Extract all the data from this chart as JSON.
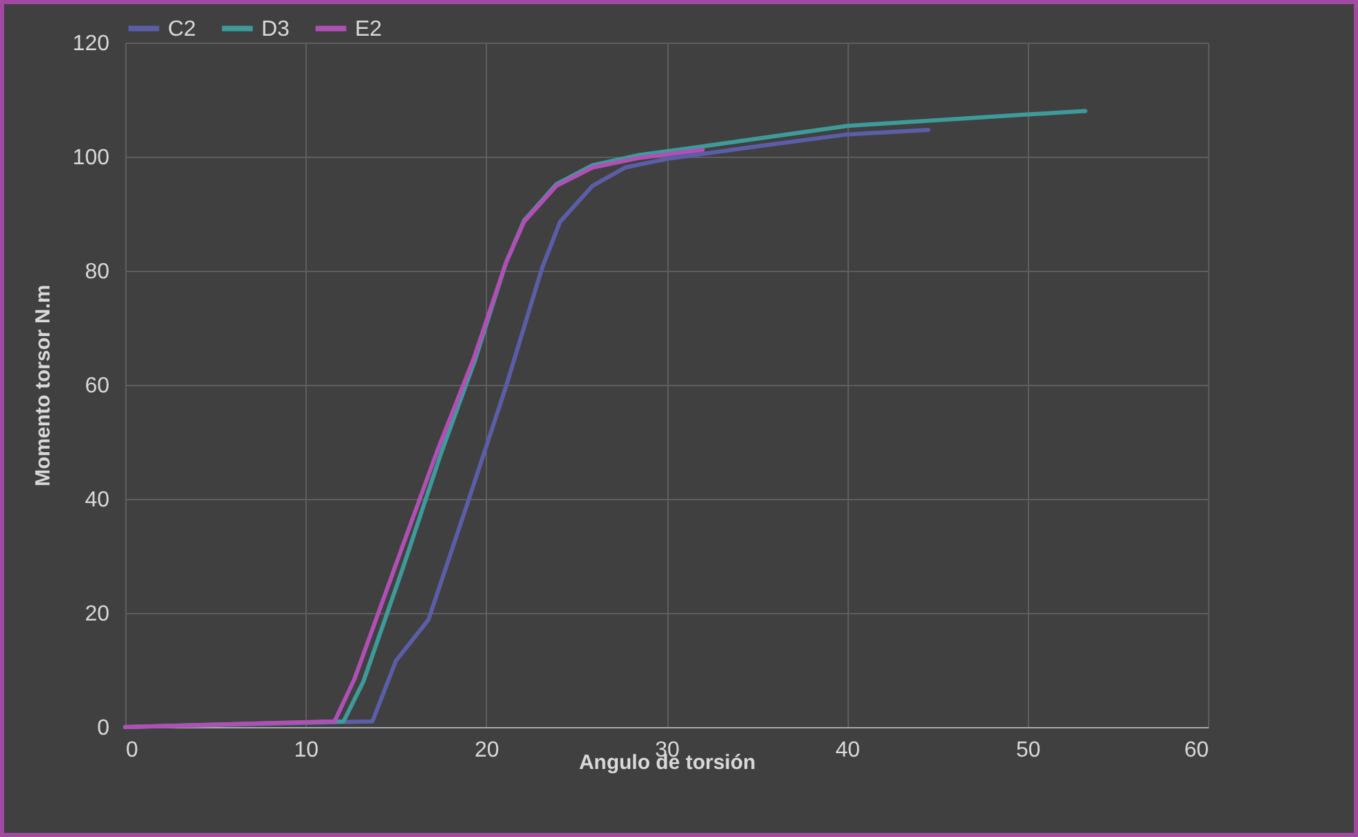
{
  "chart_data": {
    "type": "line",
    "xlabel": "Angulo de torsión",
    "ylabel": "Momento torsor N.m",
    "xlim": [
      0,
      60
    ],
    "xticks": [
      0,
      10,
      20,
      30,
      40,
      50,
      60
    ],
    "ylim": [
      0,
      120
    ],
    "yticks": [
      0,
      20,
      40,
      60,
      80,
      100,
      120
    ],
    "grid": true,
    "legend": "top",
    "line_style": "solid",
    "marker": "none",
    "series": [
      {
        "name": "C2",
        "color": "#5b5ea6",
        "x": [
          0,
          13.7,
          15.0,
          16.8,
          19.1,
          21.1,
          23.1,
          24.1,
          25.9,
          27.7,
          30.0,
          35,
          40,
          44.5
        ],
        "values": [
          0,
          1,
          11.6,
          18.8,
          40.5,
          59.7,
          80.5,
          88.6,
          94.9,
          98.1,
          99.6,
          101.8,
          103.9,
          104.7
        ]
      },
      {
        "name": "D3",
        "color": "#3f9a9a",
        "x": [
          0,
          12.1,
          13.2,
          15.4,
          17.5,
          19.4,
          21.1,
          22.1,
          23.9,
          25.9,
          28.5,
          32.0,
          40,
          50,
          53.2
        ],
        "values": [
          0,
          1,
          8,
          28,
          48,
          64.5,
          81.4,
          88.8,
          95.2,
          98.5,
          100.3,
          101.8,
          105.4,
          107.4,
          108
        ]
      },
      {
        "name": "E2",
        "color": "#b04fb4",
        "x": [
          0,
          11.6,
          12.7,
          15.0,
          17.3,
          19.3,
          21.1,
          22.1,
          23.9,
          25.9,
          28.5,
          32.0
        ],
        "values": [
          0,
          1,
          8.4,
          28.5,
          48.5,
          64.5,
          81.4,
          88.6,
          94.9,
          98.1,
          99.8,
          101.2
        ]
      }
    ]
  }
}
